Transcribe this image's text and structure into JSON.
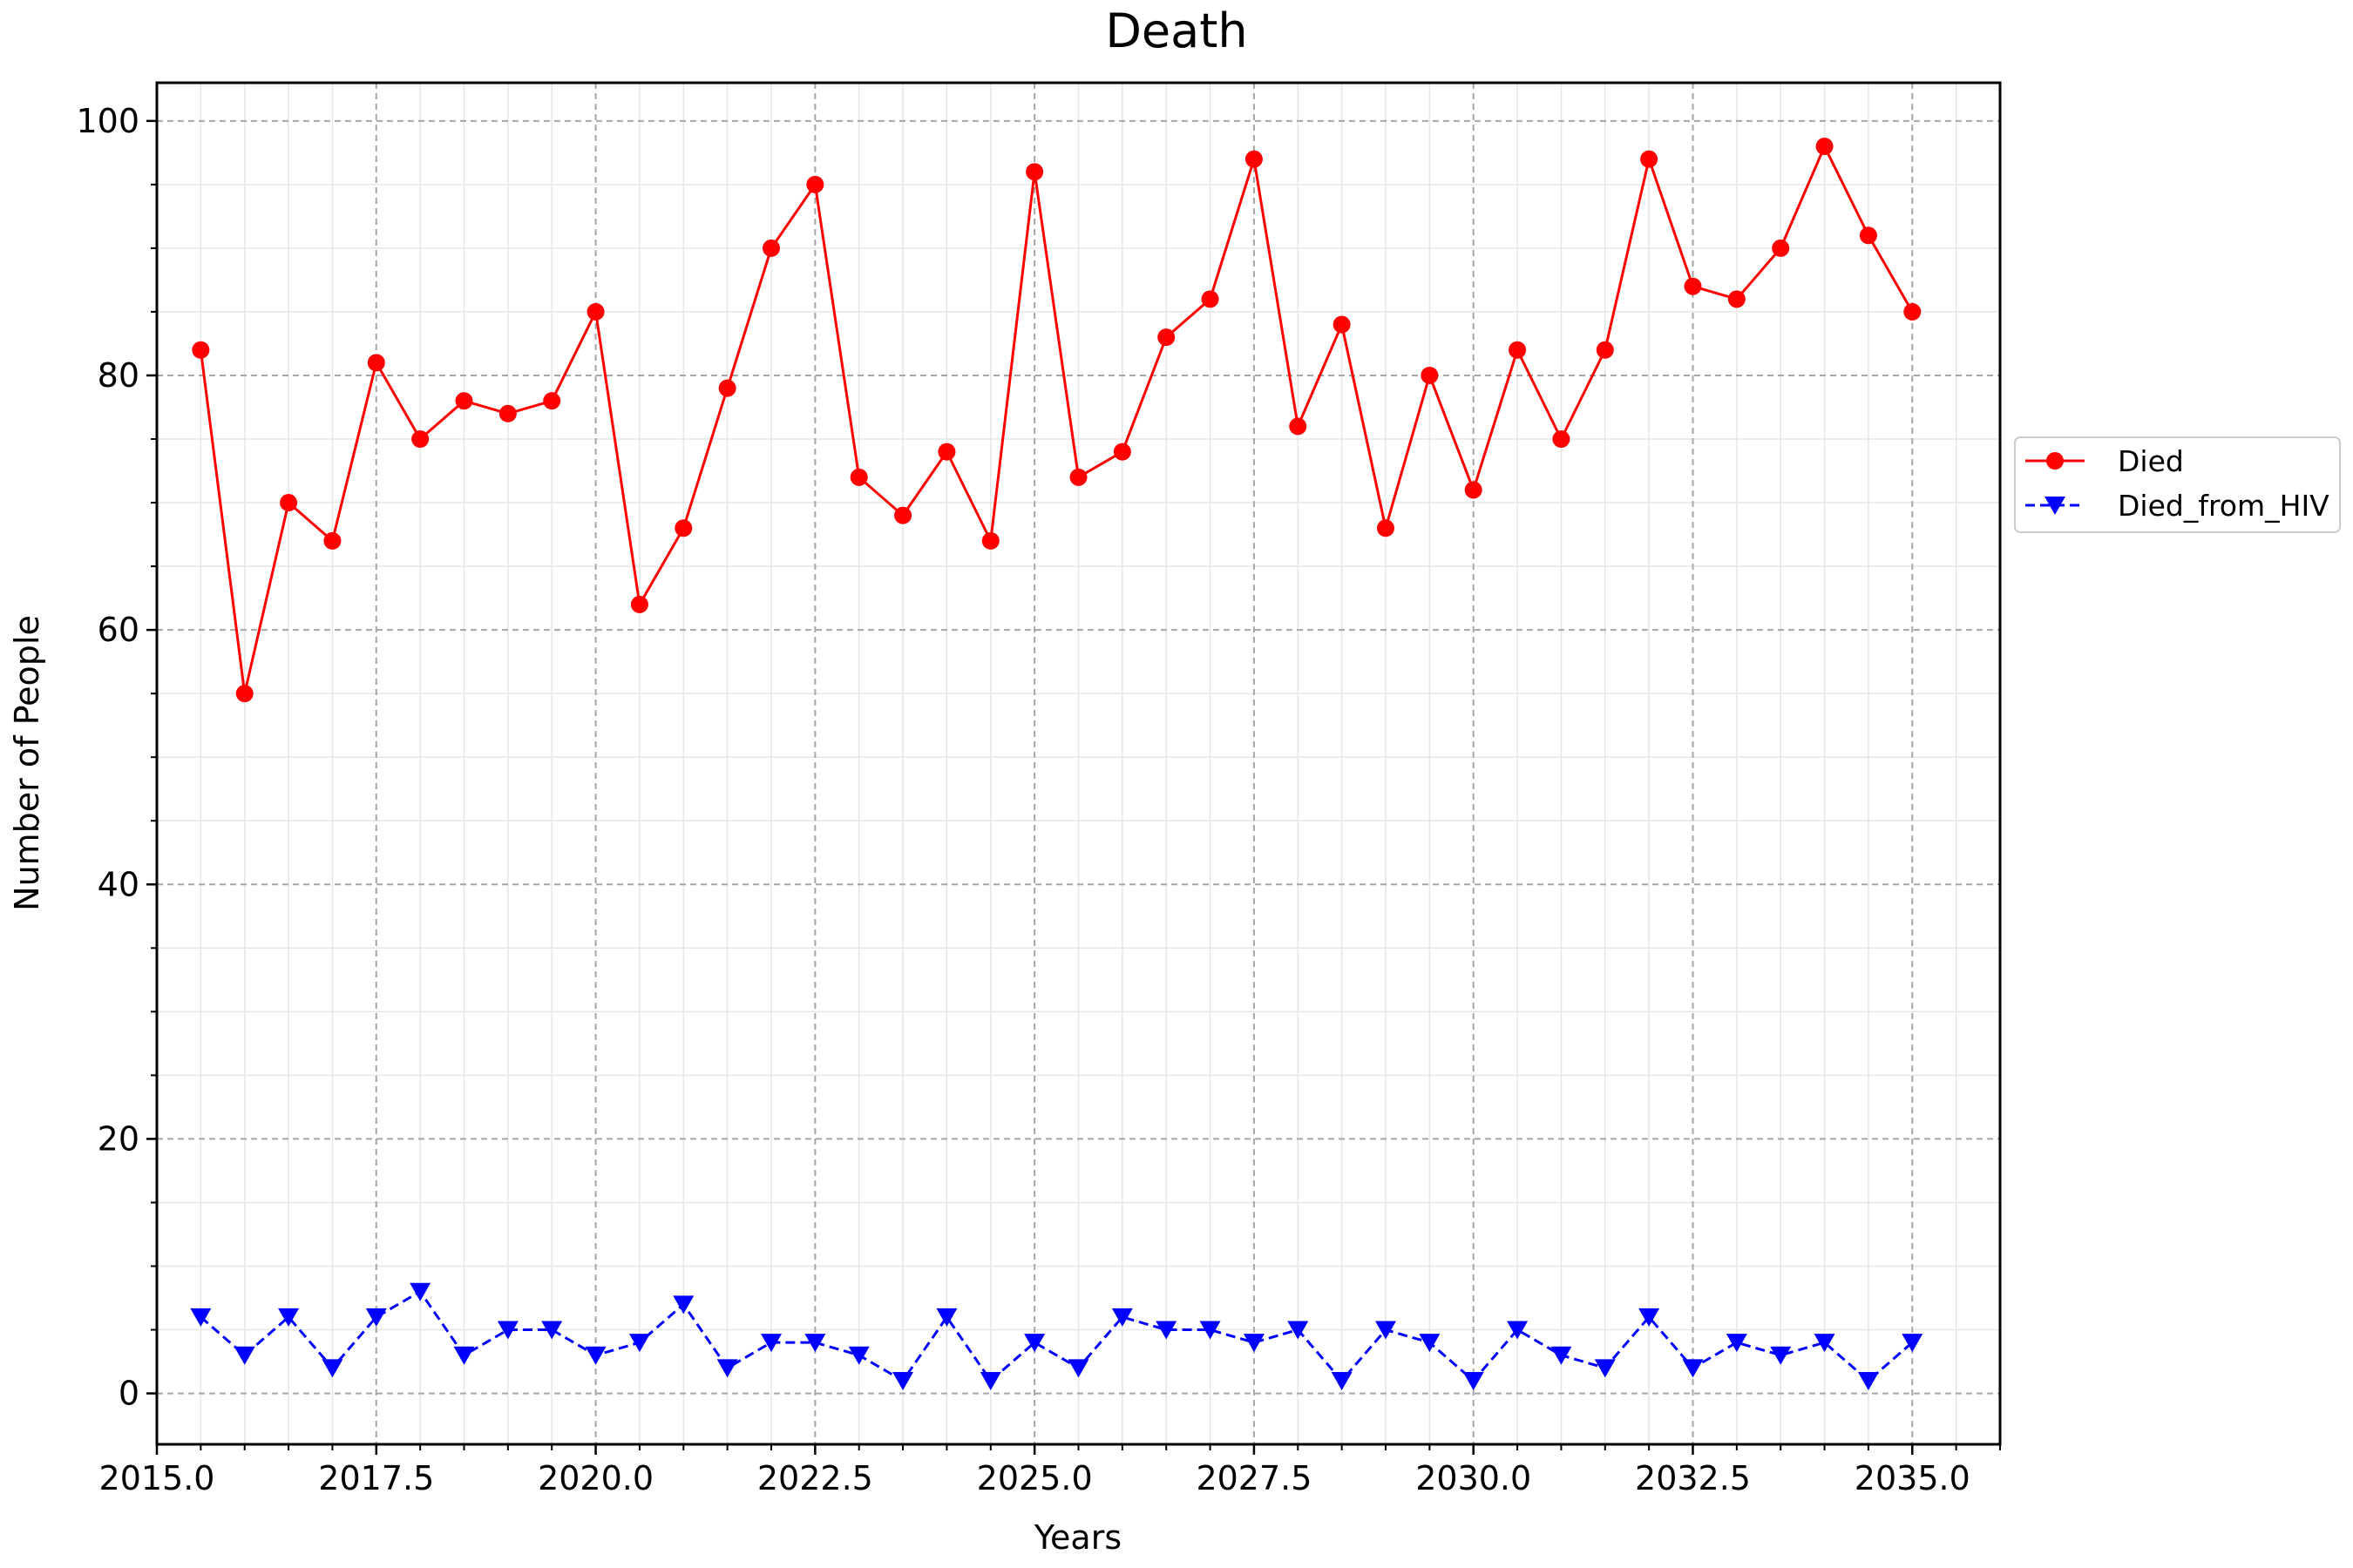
{
  "chart_data": {
    "type": "line",
    "title": "Death",
    "xlabel": "Years",
    "ylabel": "Number of People",
    "xlim": [
      2015.0,
      2036.0
    ],
    "ylim": [
      -4,
      103
    ],
    "xticks": [
      "2015.0",
      "2017.5",
      "2020.0",
      "2022.5",
      "2025.0",
      "2027.5",
      "2030.0",
      "2032.5",
      "2035.0"
    ],
    "yticks": [
      "0",
      "20",
      "40",
      "60",
      "80",
      "100"
    ],
    "grid": true,
    "legend_position": "outside right",
    "x": [
      2015.5,
      2016.0,
      2016.5,
      2017.0,
      2017.5,
      2018.0,
      2018.5,
      2019.0,
      2019.5,
      2020.0,
      2020.5,
      2021.0,
      2021.5,
      2022.0,
      2022.5,
      2023.0,
      2023.5,
      2024.0,
      2024.5,
      2025.0,
      2025.5,
      2026.0,
      2026.5,
      2027.0,
      2027.5,
      2028.0,
      2028.5,
      2029.0,
      2029.5,
      2030.0,
      2030.5,
      2031.0,
      2031.5,
      2032.0,
      2032.5,
      2033.0,
      2033.5,
      2034.0,
      2034.5,
      2035.0
    ],
    "series": [
      {
        "name": "Died",
        "color": "#ff0000",
        "marker": "circle",
        "linestyle": "solid",
        "values": [
          82,
          55,
          70,
          67,
          81,
          75,
          78,
          77,
          78,
          85,
          62,
          68,
          79,
          90,
          95,
          72,
          69,
          74,
          67,
          96,
          72,
          74,
          83,
          86,
          97,
          76,
          84,
          68,
          80,
          71,
          82,
          75,
          82,
          97,
          87,
          86,
          90,
          98,
          91,
          85
        ]
      },
      {
        "name": "Died_from_HIV",
        "color": "#0000ff",
        "marker": "triangle-down",
        "linestyle": "dashed",
        "values": [
          6,
          3,
          6,
          2,
          6,
          8,
          3,
          5,
          5,
          3,
          4,
          7,
          2,
          4,
          4,
          3,
          1,
          6,
          1,
          4,
          2,
          6,
          5,
          5,
          4,
          5,
          1,
          5,
          4,
          1,
          5,
          3,
          2,
          6,
          2,
          4,
          3,
          4,
          1,
          4
        ]
      }
    ]
  }
}
